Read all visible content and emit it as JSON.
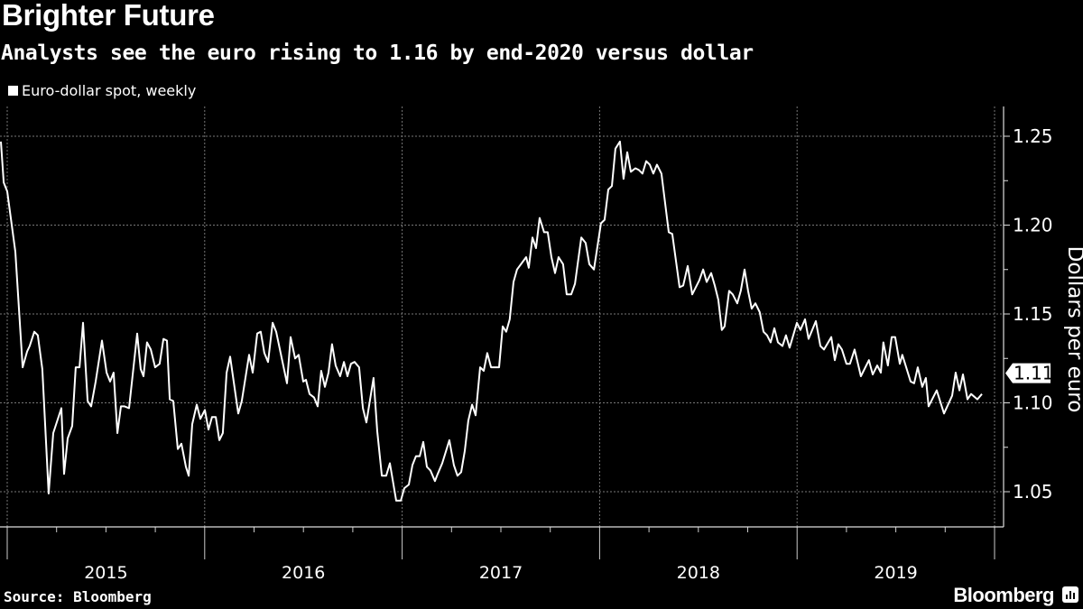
{
  "chart_data": {
    "type": "line",
    "title": "Brighter Future",
    "subtitle": "Analysts see the euro rising to 1.16 by end-2020 versus dollar",
    "legend": [
      "Euro-dollar spot, weekly"
    ],
    "legend_placement": "top-left",
    "xlabel": "",
    "ylabel": "Dollars per euro",
    "x_tick_labels": [
      "2015",
      "2016",
      "2017",
      "2018",
      "2019"
    ],
    "y_tick_labels": [
      "1.05",
      "1.10",
      "1.15",
      "1.20",
      "1.25"
    ],
    "yticks": [
      1.05,
      1.1,
      1.15,
      1.2,
      1.25
    ],
    "ylim": [
      1.026,
      1.267
    ],
    "xlim": [
      2014.965,
      2020.04
    ],
    "grid": true,
    "last_value_label": "1.11",
    "last_value": 1.105,
    "series": [
      {
        "name": "Euro-dollar spot, weekly",
        "color": "#ffffff",
        "points": [
          [
            2014.968,
            1.247
          ],
          [
            2014.982,
            1.224
          ],
          [
            2015.0,
            1.219
          ],
          [
            2015.041,
            1.185
          ],
          [
            2015.078,
            1.12
          ],
          [
            2015.101,
            1.129
          ],
          [
            2015.114,
            1.132
          ],
          [
            2015.137,
            1.14
          ],
          [
            2015.155,
            1.138
          ],
          [
            2015.178,
            1.119
          ],
          [
            2015.21,
            1.049
          ],
          [
            2015.233,
            1.083
          ],
          [
            2015.274,
            1.097
          ],
          [
            2015.288,
            1.06
          ],
          [
            2015.306,
            1.08
          ],
          [
            2015.329,
            1.087
          ],
          [
            2015.347,
            1.12
          ],
          [
            2015.366,
            1.12
          ],
          [
            2015.384,
            1.145
          ],
          [
            2015.407,
            1.101
          ],
          [
            2015.425,
            1.098
          ],
          [
            2015.448,
            1.112
          ],
          [
            2015.48,
            1.135
          ],
          [
            2015.503,
            1.117
          ],
          [
            2015.521,
            1.112
          ],
          [
            2015.539,
            1.117
          ],
          [
            2015.558,
            1.083
          ],
          [
            2015.576,
            1.098
          ],
          [
            2015.594,
            1.098
          ],
          [
            2015.617,
            1.097
          ],
          [
            2015.658,
            1.139
          ],
          [
            2015.676,
            1.119
          ],
          [
            2015.69,
            1.115
          ],
          [
            2015.708,
            1.134
          ],
          [
            2015.727,
            1.13
          ],
          [
            2015.749,
            1.12
          ],
          [
            2015.772,
            1.122
          ],
          [
            2015.791,
            1.136
          ],
          [
            2015.809,
            1.135
          ],
          [
            2015.823,
            1.102
          ],
          [
            2015.841,
            1.101
          ],
          [
            2015.864,
            1.074
          ],
          [
            2015.882,
            1.077
          ],
          [
            2015.905,
            1.064
          ],
          [
            2015.919,
            1.059
          ],
          [
            2015.937,
            1.088
          ],
          [
            2015.96,
            1.099
          ],
          [
            2015.978,
            1.091
          ],
          [
            2016.001,
            1.096
          ],
          [
            2016.019,
            1.085
          ],
          [
            2016.037,
            1.092
          ],
          [
            2016.056,
            1.092
          ],
          [
            2016.074,
            1.079
          ],
          [
            2016.092,
            1.083
          ],
          [
            2016.111,
            1.117
          ],
          [
            2016.129,
            1.126
          ],
          [
            2016.17,
            1.094
          ],
          [
            2016.188,
            1.101
          ],
          [
            2016.225,
            1.127
          ],
          [
            2016.243,
            1.117
          ],
          [
            2016.266,
            1.139
          ],
          [
            2016.284,
            1.14
          ],
          [
            2016.302,
            1.128
          ],
          [
            2016.321,
            1.123
          ],
          [
            2016.344,
            1.145
          ],
          [
            2016.362,
            1.14
          ],
          [
            2016.417,
            1.111
          ],
          [
            2016.435,
            1.137
          ],
          [
            2016.458,
            1.125
          ],
          [
            2016.476,
            1.127
          ],
          [
            2016.499,
            1.112
          ],
          [
            2016.513,
            1.113
          ],
          [
            2016.531,
            1.105
          ],
          [
            2016.554,
            1.103
          ],
          [
            2016.572,
            1.098
          ],
          [
            2016.59,
            1.118
          ],
          [
            2016.609,
            1.109
          ],
          [
            2016.627,
            1.117
          ],
          [
            2016.645,
            1.133
          ],
          [
            2016.663,
            1.121
          ],
          [
            2016.686,
            1.115
          ],
          [
            2016.705,
            1.123
          ],
          [
            2016.723,
            1.115
          ],
          [
            2016.741,
            1.122
          ],
          [
            2016.759,
            1.123
          ],
          [
            2016.782,
            1.12
          ],
          [
            2016.801,
            1.097
          ],
          [
            2016.819,
            1.089
          ],
          [
            2016.855,
            1.114
          ],
          [
            2016.874,
            1.084
          ],
          [
            2016.897,
            1.059
          ],
          [
            2016.919,
            1.059
          ],
          [
            2016.938,
            1.066
          ],
          [
            2016.97,
            1.045
          ],
          [
            2016.993,
            1.045
          ],
          [
            2017.011,
            1.052
          ],
          [
            2017.034,
            1.054
          ],
          [
            2017.052,
            1.065
          ],
          [
            2017.07,
            1.07
          ],
          [
            2017.089,
            1.07
          ],
          [
            2017.107,
            1.078
          ],
          [
            2017.125,
            1.064
          ],
          [
            2017.143,
            1.062
          ],
          [
            2017.166,
            1.056
          ],
          [
            2017.18,
            1.06
          ],
          [
            2017.203,
            1.066
          ],
          [
            2017.239,
            1.079
          ],
          [
            2017.262,
            1.065
          ],
          [
            2017.28,
            1.059
          ],
          [
            2017.299,
            1.061
          ],
          [
            2017.317,
            1.073
          ],
          [
            2017.335,
            1.09
          ],
          [
            2017.354,
            1.099
          ],
          [
            2017.372,
            1.093
          ],
          [
            2017.395,
            1.12
          ],
          [
            2017.413,
            1.118
          ],
          [
            2017.431,
            1.128
          ],
          [
            2017.45,
            1.12
          ],
          [
            2017.491,
            1.12
          ],
          [
            2017.509,
            1.143
          ],
          [
            2017.527,
            1.14
          ],
          [
            2017.545,
            1.147
          ],
          [
            2017.564,
            1.168
          ],
          [
            2017.582,
            1.175
          ],
          [
            2017.628,
            1.182
          ],
          [
            2017.641,
            1.176
          ],
          [
            2017.66,
            1.193
          ],
          [
            2017.678,
            1.187
          ],
          [
            2017.696,
            1.204
          ],
          [
            2017.719,
            1.196
          ],
          [
            2017.737,
            1.196
          ],
          [
            2017.756,
            1.182
          ],
          [
            2017.774,
            1.173
          ],
          [
            2017.792,
            1.182
          ],
          [
            2017.815,
            1.178
          ],
          [
            2017.833,
            1.161
          ],
          [
            2017.856,
            1.161
          ],
          [
            2017.875,
            1.167
          ],
          [
            2017.907,
            1.193
          ],
          [
            2017.929,
            1.19
          ],
          [
            2017.948,
            1.178
          ],
          [
            2017.971,
            1.175
          ],
          [
            2017.989,
            1.188
          ],
          [
            2018.007,
            1.201
          ],
          [
            2018.025,
            1.203
          ],
          [
            2018.044,
            1.22
          ],
          [
            2018.062,
            1.222
          ],
          [
            2018.08,
            1.243
          ],
          [
            2018.103,
            1.247
          ],
          [
            2018.121,
            1.226
          ],
          [
            2018.14,
            1.241
          ],
          [
            2018.158,
            1.23
          ],
          [
            2018.181,
            1.232
          ],
          [
            2018.199,
            1.231
          ],
          [
            2018.217,
            1.229
          ],
          [
            2018.236,
            1.236
          ],
          [
            2018.254,
            1.234
          ],
          [
            2018.272,
            1.229
          ],
          [
            2018.29,
            1.234
          ],
          [
            2018.313,
            1.229
          ],
          [
            2018.35,
            1.196
          ],
          [
            2018.368,
            1.195
          ],
          [
            2018.405,
            1.165
          ],
          [
            2018.423,
            1.166
          ],
          [
            2018.446,
            1.177
          ],
          [
            2018.469,
            1.161
          ],
          [
            2018.505,
            1.169
          ],
          [
            2018.524,
            1.175
          ],
          [
            2018.542,
            1.168
          ],
          [
            2018.565,
            1.173
          ],
          [
            2018.583,
            1.166
          ],
          [
            2018.601,
            1.158
          ],
          [
            2018.619,
            1.141
          ],
          [
            2018.633,
            1.143
          ],
          [
            2018.656,
            1.163
          ],
          [
            2018.674,
            1.161
          ],
          [
            2018.697,
            1.156
          ],
          [
            2018.715,
            1.163
          ],
          [
            2018.734,
            1.175
          ],
          [
            2018.752,
            1.163
          ],
          [
            2018.77,
            1.153
          ],
          [
            2018.789,
            1.156
          ],
          [
            2018.811,
            1.151
          ],
          [
            2018.83,
            1.14
          ],
          [
            2018.848,
            1.138
          ],
          [
            2018.866,
            1.134
          ],
          [
            2018.885,
            1.142
          ],
          [
            2018.903,
            1.134
          ],
          [
            2018.926,
            1.132
          ],
          [
            2018.944,
            1.138
          ],
          [
            2018.962,
            1.131
          ],
          [
            2018.999,
            1.145
          ],
          [
            2019.017,
            1.141
          ],
          [
            2019.04,
            1.147
          ],
          [
            2019.058,
            1.136
          ],
          [
            2019.095,
            1.146
          ],
          [
            2019.118,
            1.132
          ],
          [
            2019.136,
            1.13
          ],
          [
            2019.173,
            1.137
          ],
          [
            2019.191,
            1.124
          ],
          [
            2019.209,
            1.133
          ],
          [
            2019.227,
            1.13
          ],
          [
            2019.25,
            1.122
          ],
          [
            2019.268,
            1.122
          ],
          [
            2019.291,
            1.13
          ],
          [
            2019.323,
            1.115
          ],
          [
            2019.364,
            1.124
          ],
          [
            2019.383,
            1.116
          ],
          [
            2019.406,
            1.121
          ],
          [
            2019.424,
            1.117
          ],
          [
            2019.437,
            1.134
          ],
          [
            2019.46,
            1.121
          ],
          [
            2019.479,
            1.137
          ],
          [
            2019.497,
            1.137
          ],
          [
            2019.52,
            1.122
          ],
          [
            2019.533,
            1.127
          ],
          [
            2019.575,
            1.112
          ],
          [
            2019.593,
            1.111
          ],
          [
            2019.611,
            1.12
          ],
          [
            2019.634,
            1.109
          ],
          [
            2019.652,
            1.114
          ],
          [
            2019.666,
            1.098
          ],
          [
            2019.707,
            1.107
          ],
          [
            2019.744,
            1.094
          ],
          [
            2019.785,
            1.104
          ],
          [
            2019.803,
            1.117
          ],
          [
            2019.822,
            1.107
          ],
          [
            2019.84,
            1.116
          ],
          [
            2019.863,
            1.102
          ],
          [
            2019.881,
            1.105
          ],
          [
            2019.913,
            1.102
          ],
          [
            2019.936,
            1.105
          ]
        ]
      }
    ]
  },
  "footer": {
    "source": "Source: Bloomberg",
    "brand": "Bloomberg"
  }
}
